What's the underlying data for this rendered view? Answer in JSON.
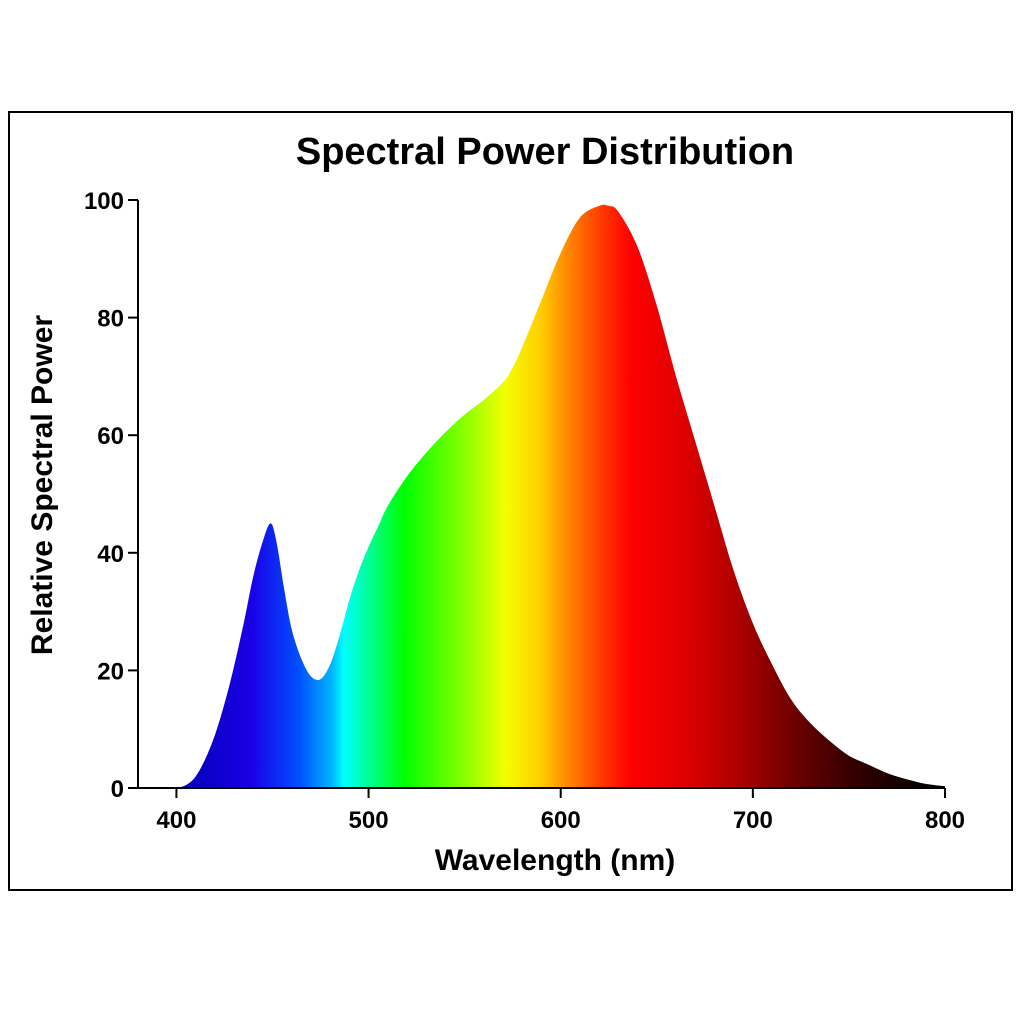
{
  "chart_data": {
    "type": "area",
    "title": "Spectral Power Distribution",
    "xlabel": "Wavelength (nm)",
    "ylabel": "Relative Spectral Power",
    "xlim": [
      380,
      800
    ],
    "ylim": [
      0,
      100
    ],
    "xticks": [
      {
        "value": 400,
        "label": "400"
      },
      {
        "value": 500,
        "label": "500"
      },
      {
        "value": 600,
        "label": "600"
      },
      {
        "value": 700,
        "label": "700"
      },
      {
        "value": 800,
        "label": "800"
      }
    ],
    "yticks": [
      {
        "value": 0,
        "label": "0"
      },
      {
        "value": 20,
        "label": "20"
      },
      {
        "value": 40,
        "label": "40"
      },
      {
        "value": 60,
        "label": "60"
      },
      {
        "value": 80,
        "label": "80"
      },
      {
        "value": 100,
        "label": "100"
      }
    ],
    "grid": false,
    "fill": "visible-spectrum gradient",
    "x": [
      380,
      395,
      405,
      412,
      420,
      428,
      435,
      440,
      445,
      449,
      452,
      456,
      460,
      465,
      470,
      475,
      480,
      485,
      490,
      495,
      500,
      505,
      510,
      520,
      530,
      540,
      550,
      560,
      570,
      575,
      580,
      590,
      600,
      610,
      620,
      625,
      630,
      640,
      650,
      660,
      670,
      680,
      690,
      700,
      710,
      720,
      730,
      740,
      750,
      760,
      770,
      780,
      790,
      800
    ],
    "y": [
      0,
      0,
      0.5,
      3,
      9,
      18,
      28,
      36,
      42,
      45,
      42,
      34,
      27,
      22,
      19,
      18.5,
      21,
      26,
      32,
      37,
      41,
      44.5,
      48,
      53,
      57,
      60.5,
      63.5,
      66,
      69,
      71.5,
      75,
      83,
      91,
      97,
      99,
      99,
      98,
      92,
      82,
      70,
      59,
      48,
      37,
      28,
      21,
      15,
      11,
      8,
      5.5,
      4,
      2.5,
      1.5,
      0.7,
      0.3
    ]
  }
}
